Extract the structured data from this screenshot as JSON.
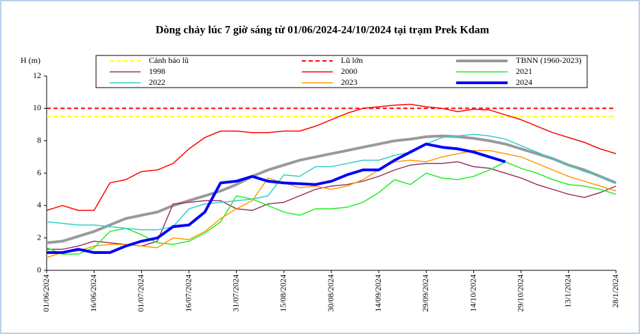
{
  "chart_data": {
    "type": "line",
    "title": "Dòng chảy lúc 7 giờ sáng từ 01/06/2024-24/10/2024 tại trạm Prek Kdam",
    "y_label": "H (m)",
    "ylim": [
      0,
      12
    ],
    "yticks": [
      0,
      2,
      4,
      6,
      8,
      10,
      12
    ],
    "categories": [
      "01/06/2024",
      null,
      null,
      "16/06/2024",
      null,
      null,
      "01/07/2024",
      null,
      null,
      "16/07/2024",
      null,
      null,
      "31/07/2024",
      null,
      null,
      "15/08/2024",
      null,
      null,
      "30/08/2024",
      null,
      null,
      "14/09/2024",
      null,
      null,
      "29/09/2024",
      null,
      null,
      "14/10/2024",
      null,
      null,
      "29/10/2024",
      null,
      null,
      "13/1/2024",
      null,
      null,
      "28/1/2024"
    ],
    "series": [
      {
        "name": "Cảnh báo lũ",
        "color": "#ffff00",
        "dashed": true,
        "line_width": 2,
        "values": [
          9.5,
          9.5,
          9.5,
          9.5,
          9.5,
          9.5,
          9.5,
          9.5,
          9.5,
          9.5,
          9.5,
          9.5,
          9.5,
          9.5,
          9.5,
          9.5,
          9.5,
          9.5,
          9.5,
          9.5,
          9.5,
          9.5,
          9.5,
          9.5,
          9.5,
          9.5,
          9.5,
          9.5,
          9.5,
          9.5,
          9.5,
          9.5,
          9.5,
          9.5,
          9.5,
          9.5,
          9.5
        ]
      },
      {
        "name": "Lũ lớn",
        "color": "#ff0000",
        "dashed": true,
        "line_width": 2,
        "values": [
          10,
          10,
          10,
          10,
          10,
          10,
          10,
          10,
          10,
          10,
          10,
          10,
          10,
          10,
          10,
          10,
          10,
          10,
          10,
          10,
          10,
          10,
          10,
          10,
          10,
          10,
          10,
          10,
          10,
          10,
          10,
          10,
          10,
          10,
          10,
          10,
          10
        ]
      },
      {
        "name": "TBNN (1960-2023)",
        "color": "#999999",
        "dashed": false,
        "line_width": 4,
        "values": [
          1.7,
          1.8,
          2.1,
          2.4,
          2.8,
          3.2,
          3.4,
          3.6,
          4.0,
          4.3,
          4.6,
          4.9,
          5.3,
          5.8,
          6.2,
          6.5,
          6.8,
          7.0,
          7.2,
          7.4,
          7.6,
          7.8,
          8.0,
          8.1,
          8.25,
          8.3,
          8.25,
          8.15,
          8.0,
          7.8,
          7.5,
          7.2,
          6.9,
          6.5,
          6.2,
          5.8,
          5.4
        ]
      },
      {
        "name": "1998",
        "color": "#993366",
        "dashed": false,
        "line_width": 1.5,
        "values": [
          1.3,
          1.3,
          1.5,
          1.8,
          1.7,
          1.6,
          1.5,
          1.8,
          4.1,
          4.2,
          4.3,
          4.3,
          3.8,
          3.7,
          4.1,
          4.2,
          4.6,
          5.0,
          5.2,
          5.3,
          5.5,
          5.8,
          6.2,
          6.5,
          6.6,
          6.6,
          6.7,
          6.4,
          6.3,
          6.0,
          5.7,
          5.3,
          5.0,
          4.7,
          4.5,
          4.8,
          5.2
        ]
      },
      {
        "name": "2000",
        "color": "#ff0000",
        "dashed": false,
        "line_width": 1.5,
        "values": [
          3.7,
          4.0,
          3.7,
          3.7,
          5.4,
          5.6,
          6.1,
          6.2,
          6.6,
          7.5,
          8.2,
          8.6,
          8.6,
          8.5,
          8.5,
          8.6,
          8.6,
          8.9,
          9.3,
          9.7,
          10.0,
          10.1,
          10.2,
          10.25,
          10.1,
          10.0,
          9.8,
          9.95,
          9.9,
          9.6,
          9.3,
          8.9,
          8.5,
          8.2,
          7.9,
          7.5,
          7.2
        ]
      },
      {
        "name": "2021",
        "color": "#22ee22",
        "dashed": false,
        "line_width": 1.5,
        "values": [
          1.4,
          1.0,
          1.0,
          1.4,
          2.4,
          2.6,
          2.2,
          1.7,
          1.6,
          1.8,
          2.3,
          3.0,
          4.6,
          4.4,
          4.0,
          3.6,
          3.4,
          3.8,
          3.8,
          3.9,
          4.2,
          4.8,
          5.6,
          5.3,
          6.0,
          5.7,
          5.6,
          5.8,
          6.2,
          6.7,
          6.3,
          6.0,
          5.6,
          5.3,
          5.2,
          5.0,
          4.7
        ]
      },
      {
        "name": "2022",
        "color": "#33cccc",
        "dashed": false,
        "line_width": 1.5,
        "values": [
          3.0,
          2.9,
          2.8,
          2.8,
          2.7,
          2.6,
          2.5,
          2.5,
          2.7,
          3.8,
          4.1,
          4.2,
          4.3,
          4.4,
          4.6,
          5.9,
          5.8,
          6.4,
          6.4,
          6.6,
          6.8,
          6.8,
          7.1,
          7.3,
          7.8,
          8.2,
          8.3,
          8.4,
          8.3,
          8.1,
          7.7,
          7.3,
          6.9,
          6.5,
          6.1,
          5.8,
          5.4
        ]
      },
      {
        "name": "2023",
        "color": "#ff9900",
        "dashed": false,
        "line_width": 1.5,
        "values": [
          0.8,
          1.1,
          1.2,
          1.5,
          1.6,
          1.6,
          1.5,
          1.4,
          2.0,
          1.9,
          2.4,
          3.2,
          3.8,
          4.3,
          5.7,
          5.4,
          5.1,
          5.2,
          5.0,
          5.2,
          5.6,
          6.2,
          6.7,
          6.8,
          6.7,
          7.0,
          7.2,
          7.4,
          7.4,
          7.2,
          7.0,
          6.6,
          6.2,
          5.8,
          5.5,
          5.2,
          4.9
        ]
      },
      {
        "name": "2024",
        "color": "#0000ff",
        "dashed": false,
        "line_width": 4,
        "values": [
          1.1,
          1.1,
          1.3,
          1.1,
          1.1,
          1.5,
          1.8,
          2.0,
          2.7,
          2.8,
          3.6,
          5.4,
          5.5,
          5.8,
          5.5,
          5.4,
          5.35,
          5.3,
          5.5,
          5.9,
          6.2,
          6.2,
          6.8,
          7.3,
          7.8,
          7.6,
          7.5,
          7.3,
          7.0,
          6.7,
          null,
          null,
          null,
          null,
          null,
          null,
          null
        ]
      }
    ]
  }
}
